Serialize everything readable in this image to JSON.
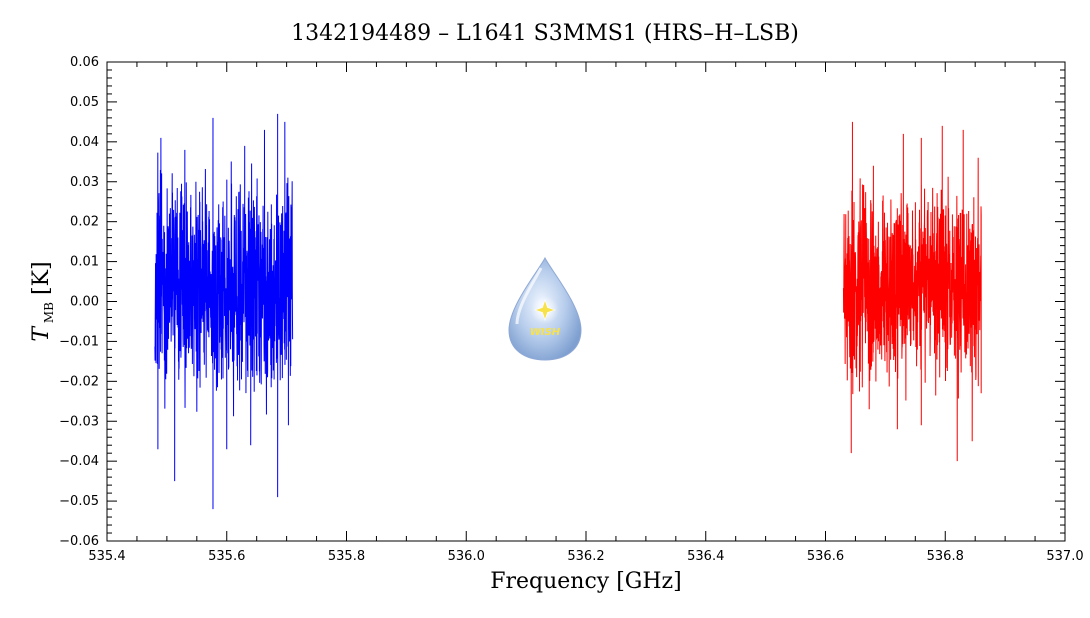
{
  "chart_data": {
    "type": "line",
    "title": "1342194489 – L1641 S3MMS1 (HRS–H–LSB)",
    "xlabel": "Frequency [GHz]",
    "ylabel_main": "T",
    "ylabel_sub": "MB",
    "ylabel_unit": "[K]",
    "xlim": [
      535.4,
      537.0
    ],
    "ylim": [
      -0.06,
      0.06
    ],
    "x_ticks": [
      535.4,
      535.6,
      535.8,
      536.0,
      536.2,
      536.4,
      536.6,
      536.8,
      537.0
    ],
    "x_tick_labels": [
      "535.4",
      "535.6",
      "535.8",
      "536.0",
      "536.2",
      "536.4",
      "536.6",
      "536.8",
      "537.0"
    ],
    "y_ticks": [
      -0.06,
      -0.05,
      -0.04,
      -0.03,
      -0.02,
      -0.01,
      0.0,
      0.01,
      0.02,
      0.03,
      0.04,
      0.05,
      0.06
    ],
    "y_tick_labels": [
      "−0.06",
      "−0.05",
      "−0.04",
      "−0.03",
      "−0.02",
      "−0.01",
      "0.00",
      "0.01",
      "0.02",
      "0.03",
      "0.04",
      "0.05",
      "0.06"
    ],
    "grid": false,
    "series": [
      {
        "color": "#0000ff",
        "x_range": [
          535.48,
          535.71
        ],
        "center": 0.004,
        "spread": 0.012,
        "max": 0.047,
        "min": -0.052,
        "peaks": [
          {
            "x": 535.49,
            "y": 0.041
          },
          {
            "x": 535.53,
            "y": 0.038
          },
          {
            "x": 535.577,
            "y": 0.046
          },
          {
            "x": 535.63,
            "y": 0.039
          },
          {
            "x": 535.663,
            "y": 0.043
          },
          {
            "x": 535.685,
            "y": 0.047
          },
          {
            "x": 535.697,
            "y": 0.045
          }
        ],
        "troughs": [
          {
            "x": 535.485,
            "y": -0.037
          },
          {
            "x": 535.513,
            "y": -0.045
          },
          {
            "x": 535.577,
            "y": -0.052
          },
          {
            "x": 535.6,
            "y": -0.037
          },
          {
            "x": 535.64,
            "y": -0.036
          },
          {
            "x": 535.685,
            "y": -0.049
          },
          {
            "x": 535.703,
            "y": -0.031
          }
        ]
      },
      {
        "color": "#ff0000",
        "x_range": [
          536.63,
          536.86
        ],
        "center": 0.004,
        "spread": 0.011,
        "max": 0.045,
        "min": -0.04,
        "peaks": [
          {
            "x": 536.645,
            "y": 0.045
          },
          {
            "x": 536.68,
            "y": 0.034
          },
          {
            "x": 536.73,
            "y": 0.042
          },
          {
            "x": 536.76,
            "y": 0.041
          },
          {
            "x": 536.795,
            "y": 0.044
          },
          {
            "x": 536.83,
            "y": 0.043
          },
          {
            "x": 536.855,
            "y": 0.036
          }
        ],
        "troughs": [
          {
            "x": 536.643,
            "y": -0.038
          },
          {
            "x": 536.673,
            "y": -0.027
          },
          {
            "x": 536.72,
            "y": -0.032
          },
          {
            "x": 536.76,
            "y": -0.031
          },
          {
            "x": 536.82,
            "y": -0.04
          },
          {
            "x": 536.845,
            "y": -0.035
          },
          {
            "x": 536.86,
            "y": -0.023
          }
        ]
      }
    ]
  },
  "logo": {
    "text": "WISH"
  }
}
